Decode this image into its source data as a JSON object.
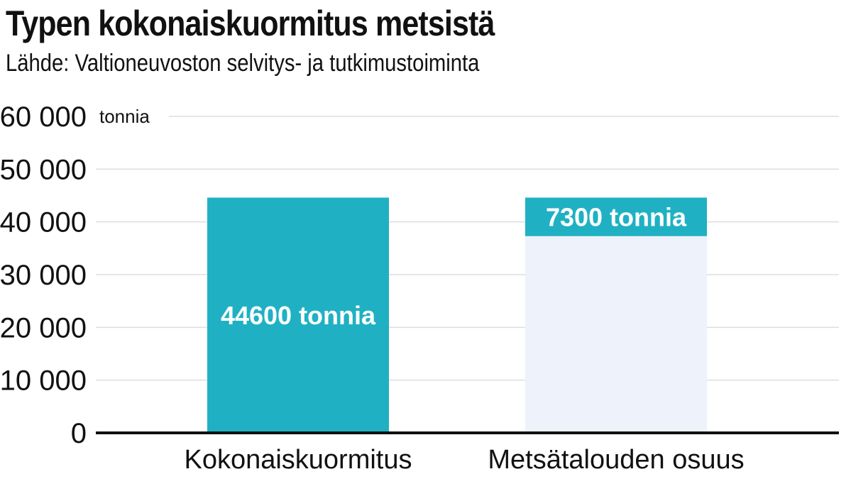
{
  "header": {
    "title": "Typen kokonaiskuormitus metsistä",
    "subtitle": "Lähde: Valtioneuvoston selvitys- ja tutkimustoiminta"
  },
  "chart_data": {
    "type": "bar",
    "title": "Typen kokonaiskuormitus metsistä",
    "subtitle": "Lähde: Valtioneuvoston selvitys- ja tutkimustoiminta",
    "ylabel": "tonnia",
    "xlabel": "",
    "ylim": [
      0,
      60000
    ],
    "yticks": [
      0,
      10000,
      20000,
      30000,
      40000,
      50000,
      60000
    ],
    "ytick_labels": [
      "0",
      "10 000",
      "20 000",
      "30 000",
      "40 000",
      "50 000",
      "60 000"
    ],
    "categories": [
      "Kokonaiskuormitus",
      "Metsätalouden osuus"
    ],
    "values": [
      44600,
      7300
    ],
    "background_total": 44600,
    "data_labels": [
      "44600 tonnia",
      "7300 tonnia"
    ],
    "grid": true,
    "colors": {
      "bar": "#1fb1c3",
      "background_bar": "#eef2fb",
      "grid": "#dddddd",
      "axis": "#111111"
    }
  }
}
